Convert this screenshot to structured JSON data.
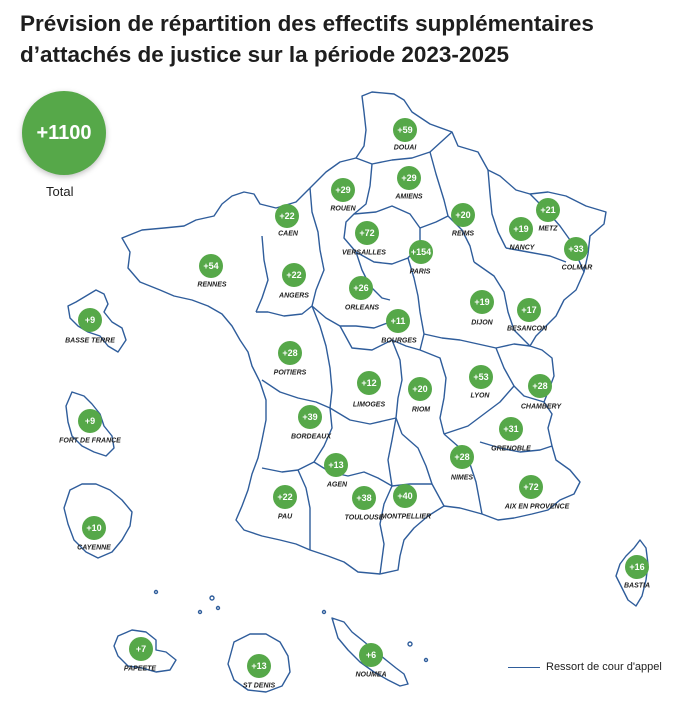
{
  "title": {
    "line1": "Prévision de répartition des effectifs supplémentaires",
    "line2": "d’attachés de justice sur la période 2023-2025"
  },
  "total": {
    "value": "+1100",
    "label": "Total"
  },
  "legend": {
    "label": "Ressort de cour d'appel",
    "line_color": "#2f5d9b"
  },
  "colors": {
    "badge": "#56a849",
    "boundary": "#2f5d9b"
  },
  "courts": [
    {
      "id": "douai",
      "name": "DOUAI",
      "value": "+59"
    },
    {
      "id": "rouen",
      "name": "ROUEN",
      "value": "+29"
    },
    {
      "id": "amiens",
      "name": "AMIENS",
      "value": "+29"
    },
    {
      "id": "caen",
      "name": "CAEN",
      "value": "+22"
    },
    {
      "id": "reims",
      "name": "REIMS",
      "value": "+20"
    },
    {
      "id": "metz",
      "name": "METZ",
      "value": "+21"
    },
    {
      "id": "nancy",
      "name": "NANCY",
      "value": "+19"
    },
    {
      "id": "colmar",
      "name": "COLMAR",
      "value": "+33"
    },
    {
      "id": "versailles",
      "name": "VERSAILLES",
      "value": "+72"
    },
    {
      "id": "paris",
      "name": "PARIS",
      "value": "+154"
    },
    {
      "id": "rennes",
      "name": "RENNES",
      "value": "+54"
    },
    {
      "id": "angers",
      "name": "ANGERS",
      "value": "+22"
    },
    {
      "id": "orleans",
      "name": "ORLEANS",
      "value": "+26"
    },
    {
      "id": "dijon",
      "name": "DIJON",
      "value": "+19"
    },
    {
      "id": "besancon",
      "name": "BESANCON",
      "value": "+17"
    },
    {
      "id": "bourges",
      "name": "BOURGES",
      "value": "+11"
    },
    {
      "id": "poitiers",
      "name": "POITIERS",
      "value": "+28"
    },
    {
      "id": "limoges",
      "name": "LIMOGES",
      "value": "+12"
    },
    {
      "id": "riom",
      "name": "RIOM",
      "value": "+20"
    },
    {
      "id": "lyon",
      "name": "LYON",
      "value": "+53"
    },
    {
      "id": "chambery",
      "name": "CHAMBERY",
      "value": "+28"
    },
    {
      "id": "bordeaux",
      "name": "BORDEAUX",
      "value": "+39"
    },
    {
      "id": "grenoble",
      "name": "GRENOBLE",
      "value": "+31"
    },
    {
      "id": "agen",
      "name": "AGEN",
      "value": "+13"
    },
    {
      "id": "nimes",
      "name": "NIMES",
      "value": "+28"
    },
    {
      "id": "pau",
      "name": "PAU",
      "value": "+22"
    },
    {
      "id": "toulouse",
      "name": "TOULOUSE",
      "value": "+38"
    },
    {
      "id": "montpellier",
      "name": "MONTPELLIER",
      "value": "+40"
    },
    {
      "id": "aix",
      "name": "AIX EN PROVENCE",
      "value": "+72"
    },
    {
      "id": "bastia",
      "name": "BASTIA",
      "value": "+16"
    },
    {
      "id": "basse-terre",
      "name": "BASSE TERRE",
      "value": "+9"
    },
    {
      "id": "fort-de-france",
      "name": "FORT DE FRANCE",
      "value": "+9"
    },
    {
      "id": "cayenne",
      "name": "CAYENNE",
      "value": "+10"
    },
    {
      "id": "papeete",
      "name": "PAPEETE",
      "value": "+7"
    },
    {
      "id": "st-denis",
      "name": "ST DENIS",
      "value": "+13"
    },
    {
      "id": "noumea",
      "name": "NOUMEA",
      "value": "+6"
    }
  ]
}
